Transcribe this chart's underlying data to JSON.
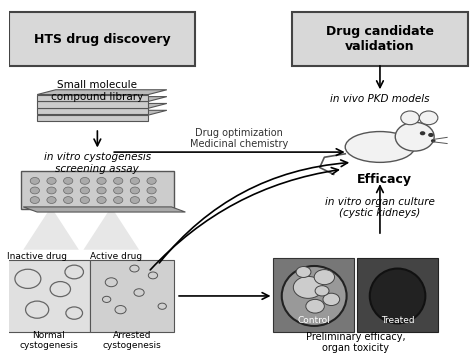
{
  "bg_color": "#ffffff",
  "box_left_title": "HTS drug discovery",
  "box_right_title": "Drug candidate\nvalidation",
  "label_compound": "Small molecule\ncompound library",
  "label_invitro_screen": "in vitro cystogenesis\nscreening assay",
  "label_inactive": "Inactive drug",
  "label_active": "Active drug",
  "label_normal": "Normal\ncystogenesis",
  "label_arrested": "Arrested\ncystogenesis",
  "label_arrow_mid": "Drug optimization\nMedicinal chemistry",
  "label_invivo": "in vivo PKD models",
  "label_efficacy": "Efficacy",
  "label_invitro_organ": "in vitro organ culture\n(cystic kidneys)",
  "label_control": "Control",
  "label_treated": "Treated",
  "label_prelim": "Preliminary efficacy,\norgan toxicity",
  "fig_width": 4.74,
  "fig_height": 3.57,
  "dpi": 100
}
